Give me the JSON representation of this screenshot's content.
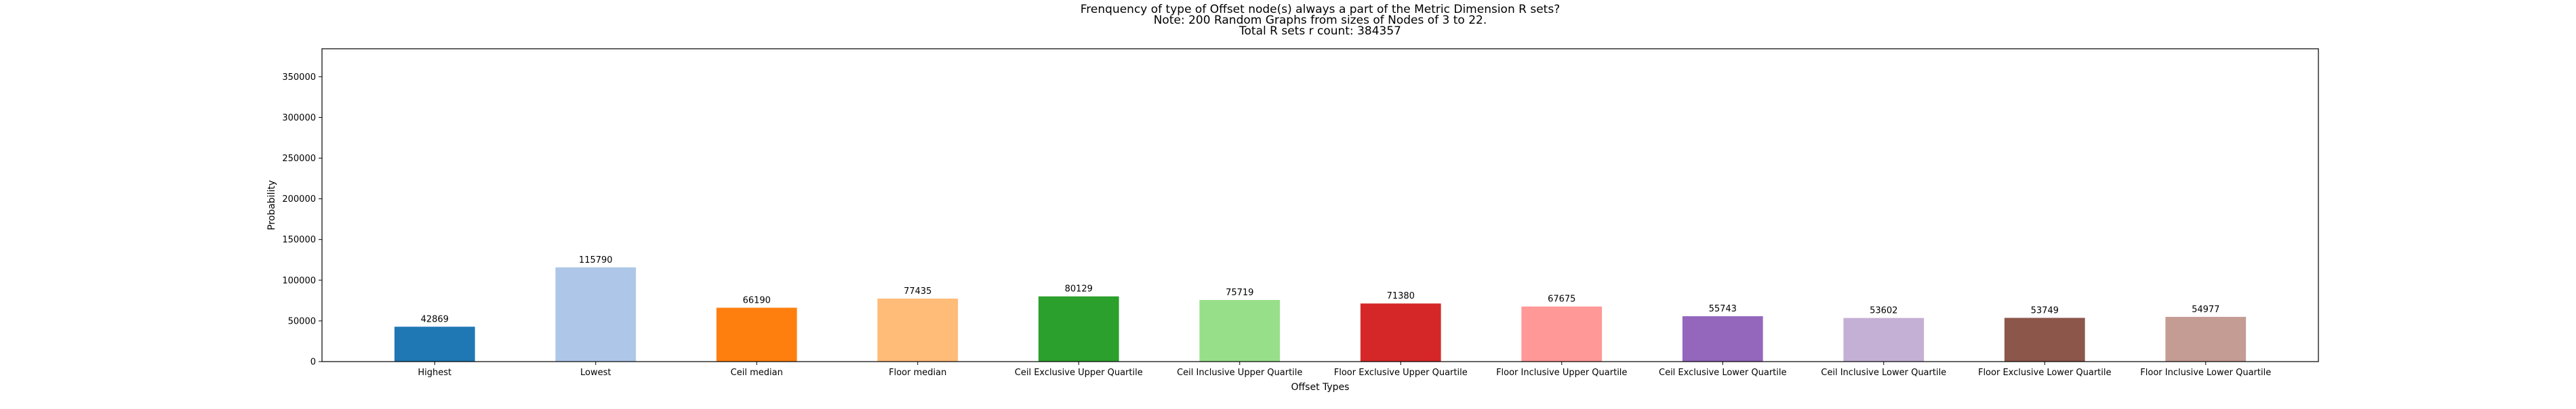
{
  "chart_data": {
    "type": "bar",
    "title_lines": [
      "Frenquency of type of Offset node(s) always a part of the Metric Dimension R sets?",
      "Note: 200 Random Graphs from sizes of Nodes of 3 to 22.",
      "Total R sets r count: 384357"
    ],
    "xlabel": "Offset Types",
    "ylabel": "Probability",
    "ylim": [
      0,
      384357
    ],
    "yticks": [
      0,
      50000,
      100000,
      150000,
      200000,
      250000,
      300000,
      350000
    ],
    "grid": false,
    "categories": [
      "Highest",
      "Lowest",
      "Ceil median",
      "Floor median",
      "Ceil Exclusive Upper Quartile",
      "Ceil Inclusive Upper Quartile",
      "Floor Exclusive Upper Quartile",
      "Floor Inclusive Upper Quartile",
      "Ceil Exclusive Lower Quartile",
      "Ceil Inclusive Lower Quartile",
      "Floor Exclusive Lower Quartile",
      "Floor Inclusive Lower Quartile"
    ],
    "values": [
      42869,
      115790,
      66190,
      77435,
      80129,
      75719,
      71380,
      67675,
      55743,
      53602,
      53749,
      54977
    ],
    "colors": [
      "#1f77b4",
      "#aec7e8",
      "#ff7f0e",
      "#ffbb78",
      "#2ca02c",
      "#98df8a",
      "#d62728",
      "#ff9896",
      "#9467bd",
      "#c5b0d5",
      "#8c564b",
      "#c49c94"
    ]
  }
}
